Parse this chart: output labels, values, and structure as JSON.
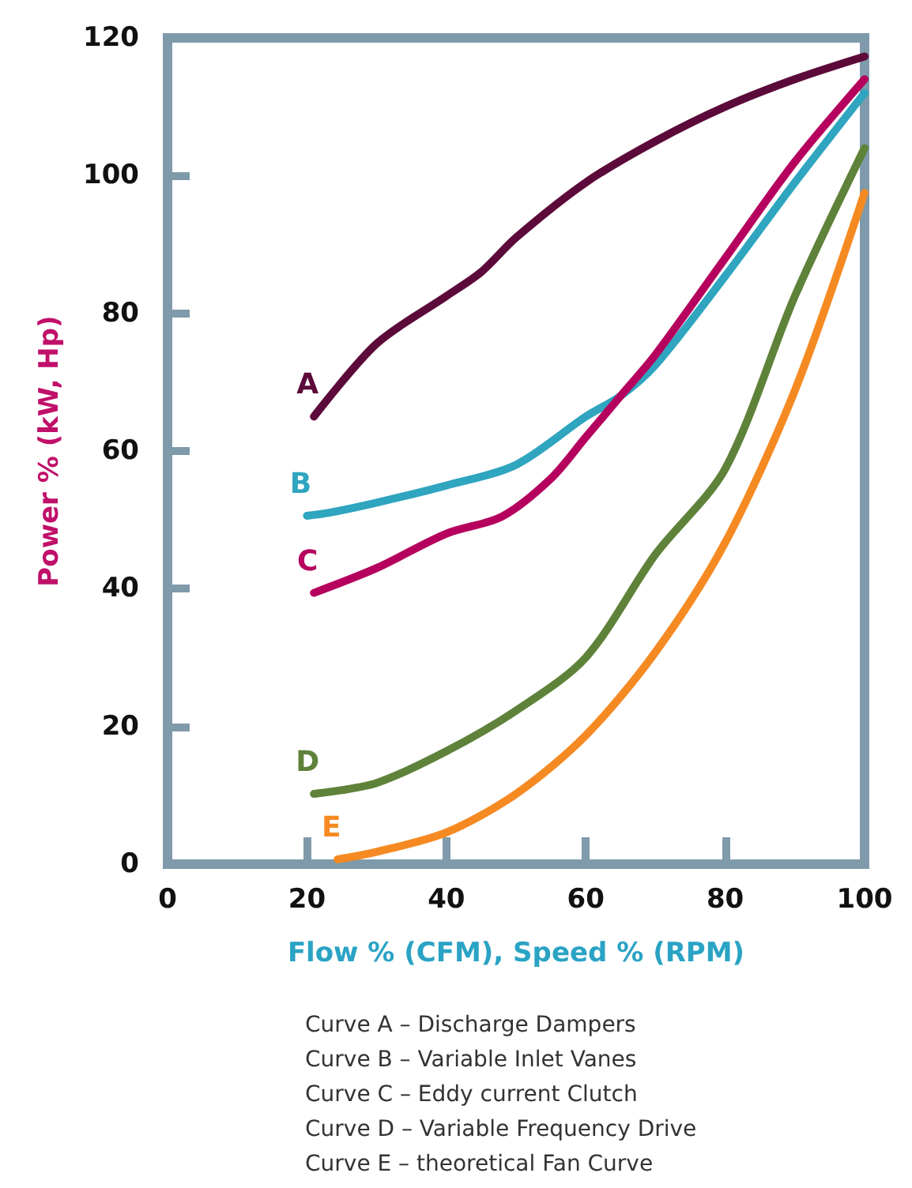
{
  "chart_data": {
    "type": "line",
    "xlabel": "Flow % (CFM), Speed % (RPM)",
    "ylabel": "Power % (kW, Hp)",
    "xlim": [
      0,
      100
    ],
    "ylim": [
      0,
      120
    ],
    "xticks": [
      0,
      20,
      40,
      60,
      80,
      100
    ],
    "yticks": [
      0,
      20,
      40,
      60,
      80,
      100,
      120
    ],
    "grid": false,
    "legend": false,
    "marker": "none",
    "line_style": "solid",
    "series": [
      {
        "name": "A",
        "color": "#5c0a3a",
        "x": [
          21,
          30,
          40,
          45,
          50,
          60,
          70,
          80,
          90,
          100
        ],
        "values": [
          65,
          75.6,
          82.5,
          86,
          91,
          99,
          105,
          110,
          114,
          117.3
        ]
      },
      {
        "name": "B",
        "color": "#2fa5bf",
        "x": [
          20,
          23,
          30,
          40,
          50,
          60,
          65,
          70,
          80,
          90,
          100
        ],
        "values": [
          50.6,
          51,
          52.5,
          55,
          58,
          65,
          68,
          72.5,
          85.4,
          99,
          112
        ]
      },
      {
        "name": "C",
        "color": "#b5005e",
        "x": [
          21,
          30,
          40,
          48,
          55,
          60,
          65,
          70,
          80,
          90,
          100
        ],
        "values": [
          39.4,
          43,
          48,
          50.5,
          56,
          62,
          68,
          74,
          88,
          102,
          114
        ]
      },
      {
        "name": "D",
        "color": "#5f823a",
        "x": [
          21,
          30,
          40,
          50,
          60,
          70,
          80,
          90,
          100
        ],
        "values": [
          10.2,
          11.8,
          16.4,
          22.3,
          30,
          45,
          57.4,
          82.5,
          104
        ]
      },
      {
        "name": "E",
        "color": "#f58a23",
        "x": [
          24.4,
          30,
          40,
          50,
          60,
          70,
          80,
          90,
          100
        ],
        "values": [
          0.7,
          1.8,
          4.6,
          10.2,
          18.7,
          30.8,
          46.7,
          68.8,
          97.5
        ]
      }
    ],
    "annotations": [
      "Curve A – Discharge Dampers",
      "Curve B – Variable Inlet Vanes",
      "Curve C – Eddy current Clutch",
      "Curve D – Variable Frequency Drive",
      "Curve E – theoretical Fan Curve"
    ]
  }
}
